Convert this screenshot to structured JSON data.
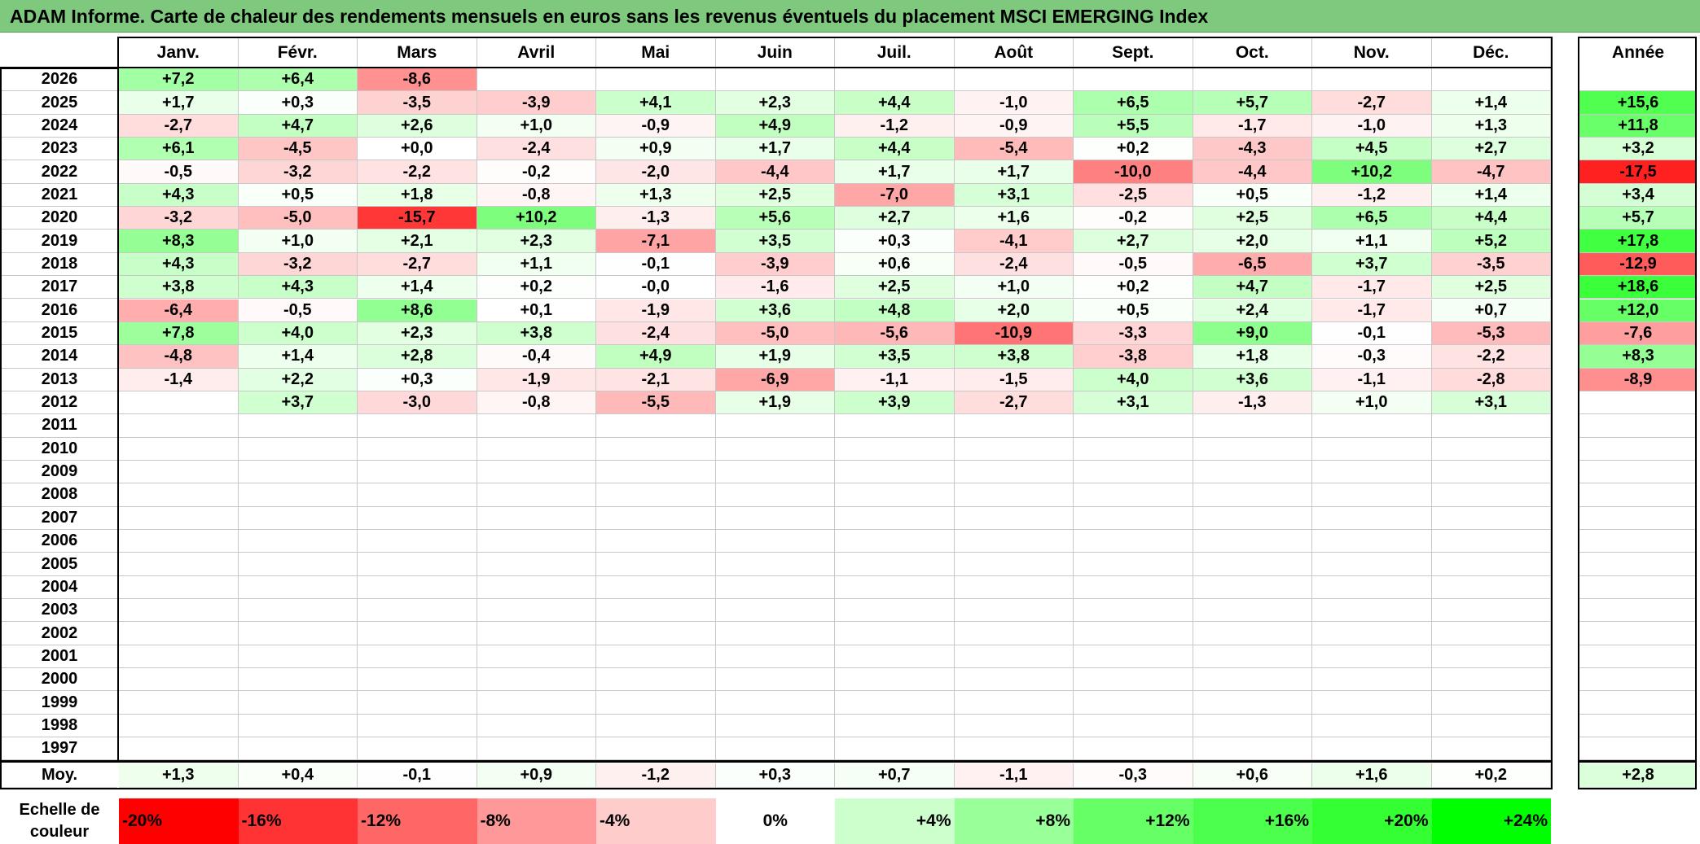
{
  "title": "ADAM Informe. Carte de chaleur des rendements mensuels en euros sans les revenus éventuels du placement MSCI EMERGING Index",
  "chart_data": {
    "type": "heatmap",
    "title": "ADAM Informe. Carte de chaleur des rendements mensuels en euros sans les revenus éventuels du placement MSCI EMERGING Index",
    "columns": [
      "Janv.",
      "Févr.",
      "Mars",
      "Avril",
      "Mai",
      "Juin",
      "Juil.",
      "Août",
      "Sept.",
      "Oct.",
      "Nov.",
      "Déc."
    ],
    "annual_header": "Année",
    "rows": [
      {
        "year": "2026",
        "months": [
          7.2,
          6.4,
          -8.6,
          null,
          null,
          null,
          null,
          null,
          null,
          null,
          null,
          null
        ],
        "annual": null
      },
      {
        "year": "2025",
        "months": [
          1.7,
          0.3,
          -3.5,
          -3.9,
          4.1,
          2.3,
          4.4,
          -1.0,
          6.5,
          5.7,
          -2.7,
          1.4
        ],
        "annual": 15.6
      },
      {
        "year": "2024",
        "months": [
          -2.7,
          4.7,
          2.6,
          1.0,
          -0.9,
          4.9,
          -1.2,
          -0.9,
          5.5,
          -1.7,
          -1.0,
          1.3
        ],
        "annual": 11.8
      },
      {
        "year": "2023",
        "months": [
          6.1,
          -4.5,
          0.0,
          -2.4,
          0.9,
          1.7,
          4.4,
          -5.4,
          0.2,
          -4.3,
          4.5,
          2.7
        ],
        "annual": 3.2
      },
      {
        "year": "2022",
        "months": [
          -0.5,
          -3.2,
          -2.2,
          -0.2,
          -2.0,
          -4.4,
          1.7,
          1.7,
          -10.0,
          -4.4,
          10.2,
          -4.7
        ],
        "annual": -17.5
      },
      {
        "year": "2021",
        "months": [
          4.3,
          0.5,
          1.8,
          -0.8,
          1.3,
          2.5,
          -7.0,
          3.1,
          -2.5,
          0.5,
          -1.2,
          1.4
        ],
        "annual": 3.4
      },
      {
        "year": "2020",
        "months": [
          -3.2,
          -5.0,
          -15.7,
          10.2,
          -1.3,
          5.6,
          2.7,
          1.6,
          -0.2,
          2.5,
          6.5,
          4.4
        ],
        "annual": 5.7
      },
      {
        "year": "2019",
        "months": [
          8.3,
          1.0,
          2.1,
          2.3,
          -7.1,
          3.5,
          0.3,
          -4.1,
          2.7,
          2.0,
          1.1,
          5.2
        ],
        "annual": 17.8
      },
      {
        "year": "2018",
        "months": [
          4.3,
          -3.2,
          -2.7,
          1.1,
          -0.1,
          -3.9,
          0.6,
          -2.4,
          -0.5,
          -6.5,
          3.7,
          -3.5
        ],
        "annual": -12.9
      },
      {
        "year": "2017",
        "months": [
          3.8,
          4.3,
          1.4,
          0.2,
          -0.0,
          -1.6,
          2.5,
          1.0,
          0.2,
          4.7,
          -1.7,
          2.5
        ],
        "annual": 18.6
      },
      {
        "year": "2016",
        "months": [
          -6.4,
          -0.5,
          8.6,
          0.1,
          -1.9,
          3.6,
          4.8,
          2.0,
          0.5,
          2.4,
          -1.7,
          0.7
        ],
        "annual": 12.0
      },
      {
        "year": "2015",
        "months": [
          7.8,
          4.0,
          2.3,
          3.8,
          -2.4,
          -5.0,
          -5.6,
          -10.9,
          -3.3,
          9.0,
          -0.1,
          -5.3
        ],
        "annual": -7.6
      },
      {
        "year": "2014",
        "months": [
          -4.8,
          1.4,
          2.8,
          -0.4,
          4.9,
          1.9,
          3.5,
          3.8,
          -3.8,
          1.8,
          -0.3,
          -2.2
        ],
        "annual": 8.3
      },
      {
        "year": "2013",
        "months": [
          -1.4,
          2.2,
          0.3,
          -1.9,
          -2.1,
          -6.9,
          -1.1,
          -1.5,
          4.0,
          3.6,
          -1.1,
          -2.8
        ],
        "annual": -8.9
      },
      {
        "year": "2012",
        "months": [
          null,
          3.7,
          -3.0,
          -0.8,
          -5.5,
          1.9,
          3.9,
          -2.7,
          3.1,
          -1.3,
          1.0,
          3.1
        ],
        "annual": null
      },
      {
        "year": "2011",
        "months": [
          null,
          null,
          null,
          null,
          null,
          null,
          null,
          null,
          null,
          null,
          null,
          null
        ],
        "annual": null
      },
      {
        "year": "2010",
        "months": [
          null,
          null,
          null,
          null,
          null,
          null,
          null,
          null,
          null,
          null,
          null,
          null
        ],
        "annual": null
      },
      {
        "year": "2009",
        "months": [
          null,
          null,
          null,
          null,
          null,
          null,
          null,
          null,
          null,
          null,
          null,
          null
        ],
        "annual": null
      },
      {
        "year": "2008",
        "months": [
          null,
          null,
          null,
          null,
          null,
          null,
          null,
          null,
          null,
          null,
          null,
          null
        ],
        "annual": null
      },
      {
        "year": "2007",
        "months": [
          null,
          null,
          null,
          null,
          null,
          null,
          null,
          null,
          null,
          null,
          null,
          null
        ],
        "annual": null
      },
      {
        "year": "2006",
        "months": [
          null,
          null,
          null,
          null,
          null,
          null,
          null,
          null,
          null,
          null,
          null,
          null
        ],
        "annual": null
      },
      {
        "year": "2005",
        "months": [
          null,
          null,
          null,
          null,
          null,
          null,
          null,
          null,
          null,
          null,
          null,
          null
        ],
        "annual": null
      },
      {
        "year": "2004",
        "months": [
          null,
          null,
          null,
          null,
          null,
          null,
          null,
          null,
          null,
          null,
          null,
          null
        ],
        "annual": null
      },
      {
        "year": "2003",
        "months": [
          null,
          null,
          null,
          null,
          null,
          null,
          null,
          null,
          null,
          null,
          null,
          null
        ],
        "annual": null
      },
      {
        "year": "2002",
        "months": [
          null,
          null,
          null,
          null,
          null,
          null,
          null,
          null,
          null,
          null,
          null,
          null
        ],
        "annual": null
      },
      {
        "year": "2001",
        "months": [
          null,
          null,
          null,
          null,
          null,
          null,
          null,
          null,
          null,
          null,
          null,
          null
        ],
        "annual": null
      },
      {
        "year": "2000",
        "months": [
          null,
          null,
          null,
          null,
          null,
          null,
          null,
          null,
          null,
          null,
          null,
          null
        ],
        "annual": null
      },
      {
        "year": "1999",
        "months": [
          null,
          null,
          null,
          null,
          null,
          null,
          null,
          null,
          null,
          null,
          null,
          null
        ],
        "annual": null
      },
      {
        "year": "1998",
        "months": [
          null,
          null,
          null,
          null,
          null,
          null,
          null,
          null,
          null,
          null,
          null,
          null
        ],
        "annual": null
      },
      {
        "year": "1997",
        "months": [
          null,
          null,
          null,
          null,
          null,
          null,
          null,
          null,
          null,
          null,
          null,
          null
        ],
        "annual": null
      }
    ],
    "average": {
      "label": "Moy.",
      "months": [
        1.3,
        0.4,
        -0.1,
        0.9,
        -1.2,
        0.3,
        0.7,
        -1.1,
        -0.3,
        0.6,
        1.6,
        0.2
      ],
      "annual": 2.8
    },
    "color_scale": {
      "label_line1": "Echelle de",
      "label_line2": "couleur",
      "stops": [
        {
          "label": "-20%",
          "value": -20,
          "color": "#ff0000"
        },
        {
          "label": "-16%",
          "value": -16,
          "color": "#ff3333"
        },
        {
          "label": "-12%",
          "value": -12,
          "color": "#ff6666"
        },
        {
          "label": "-8%",
          "value": -8,
          "color": "#ff9999"
        },
        {
          "label": "-4%",
          "value": -4,
          "color": "#ffcccc"
        },
        {
          "label": "0%",
          "value": 0,
          "color": "#ffffff"
        },
        {
          "label": "+4%",
          "value": 4,
          "color": "#ccffcc"
        },
        {
          "label": "+8%",
          "value": 8,
          "color": "#99ff99"
        },
        {
          "label": "+12%",
          "value": 12,
          "color": "#66ff66"
        },
        {
          "label": "+16%",
          "value": 16,
          "color": "#4dff4d"
        },
        {
          "label": "+20%",
          "value": 20,
          "color": "#33ff33"
        },
        {
          "label": "+24%",
          "value": 24,
          "color": "#00ff00"
        }
      ]
    }
  }
}
